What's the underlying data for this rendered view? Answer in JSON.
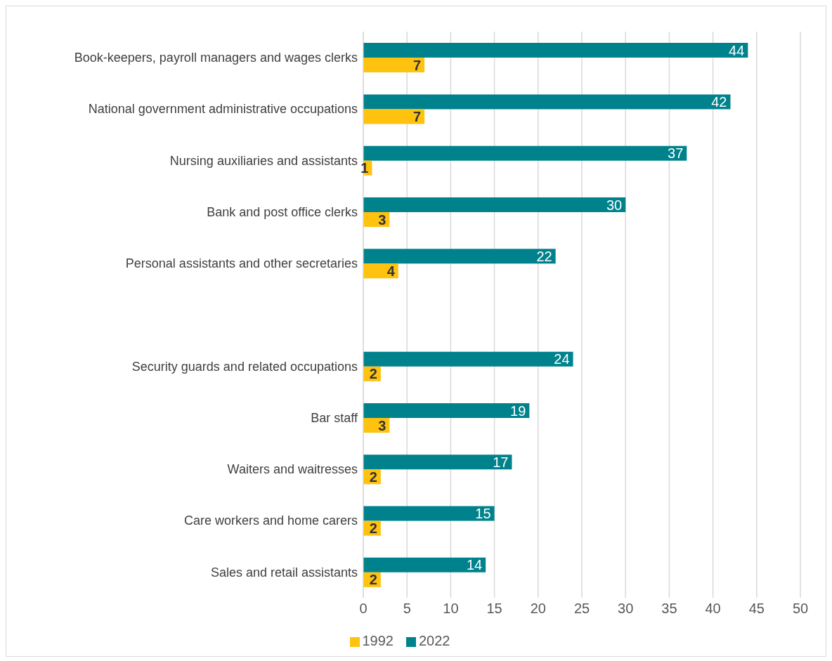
{
  "chart_data": {
    "type": "bar",
    "orientation": "horizontal",
    "categories": [
      "Book-keepers, payroll managers and wages clerks",
      "National government administrative occupations",
      "Nursing auxiliaries and assistants",
      "Bank and post office clerks",
      "Personal assistants and other secretaries",
      null,
      "Security guards and related occupations",
      "Bar staff",
      "Waiters and waitresses",
      "Care workers and home carers",
      "Sales and retail assistants"
    ],
    "series": [
      {
        "name": "2022",
        "color": "#00828c",
        "values": [
          44,
          42,
          37,
          30,
          22,
          null,
          24,
          19,
          17,
          15,
          14
        ]
      },
      {
        "name": "1992",
        "color": "#ffc20e",
        "values": [
          7,
          7,
          1,
          3,
          4,
          null,
          2,
          3,
          2,
          2,
          2
        ]
      }
    ],
    "xlim": [
      0,
      50
    ],
    "xticks": [
      0,
      5,
      10,
      15,
      20,
      25,
      30,
      35,
      40,
      45,
      50
    ],
    "grid": "x",
    "legend": "bottom",
    "data_labels": true
  }
}
